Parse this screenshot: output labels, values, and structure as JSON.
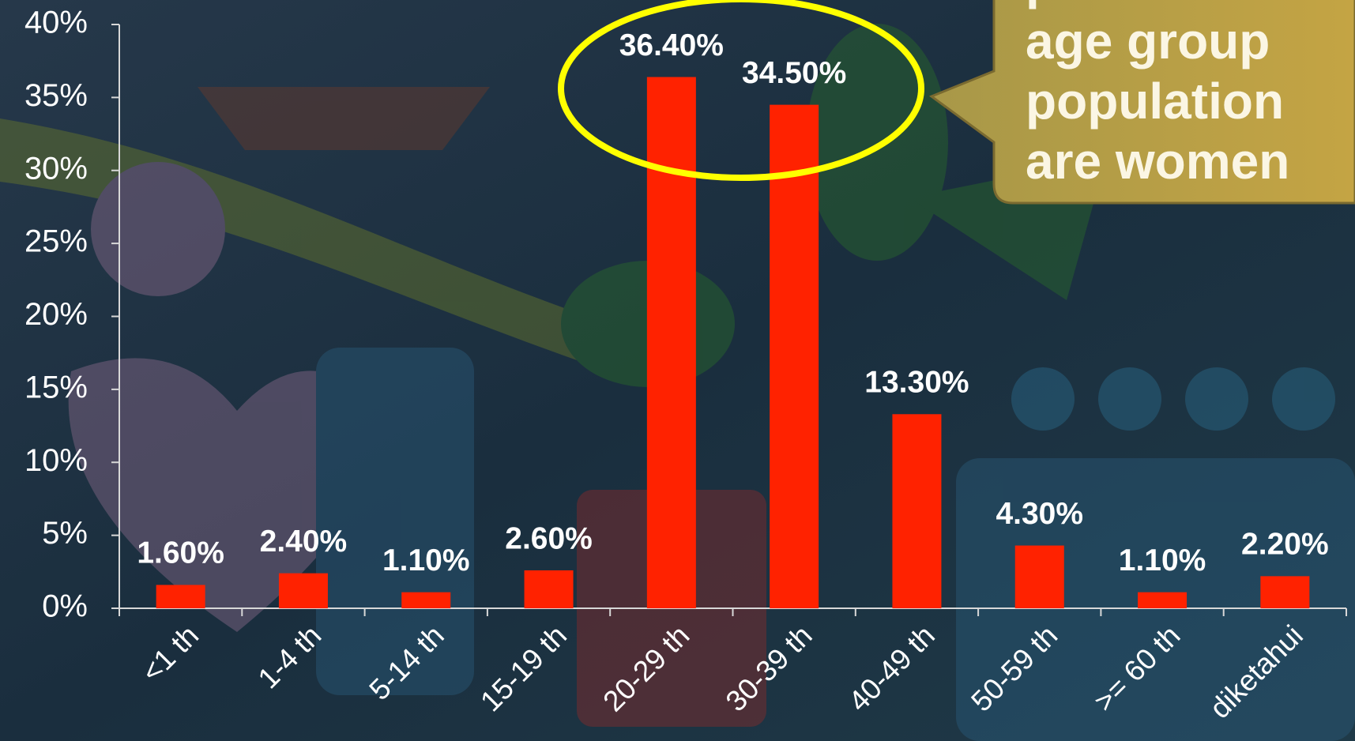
{
  "chart_data": {
    "type": "bar",
    "categories": [
      "<1 th",
      "1-4 th",
      "5-14 th",
      "15-19 th",
      "20-29 th",
      "30-39 th",
      "40-49 th",
      "50-59 th",
      ">= 60 th",
      "diketahui"
    ],
    "values": [
      1.6,
      2.4,
      1.1,
      2.6,
      36.4,
      34.5,
      13.3,
      4.3,
      1.1,
      2.2
    ],
    "value_labels": [
      "1.60%",
      "2.40%",
      "1.10%",
      "2.60%",
      "36.40%",
      "34.50%",
      "13.30%",
      "4.30%",
      "1.10%",
      "2.20%"
    ],
    "color": "#ff2200",
    "ylim": [
      0,
      40
    ],
    "yticks": [
      {
        "value": 0,
        "label": "0%"
      },
      {
        "value": 5,
        "label": "5%"
      },
      {
        "value": 10,
        "label": "10%"
      },
      {
        "value": 15,
        "label": "15%"
      },
      {
        "value": 20,
        "label": "20%"
      },
      {
        "value": 25,
        "label": "25%"
      },
      {
        "value": 30,
        "label": "30%"
      },
      {
        "value": 35,
        "label": "35%"
      },
      {
        "value": 40,
        "label": "40%"
      }
    ],
    "annotation": [
      "productive",
      "age group",
      "population",
      "are women"
    ]
  }
}
